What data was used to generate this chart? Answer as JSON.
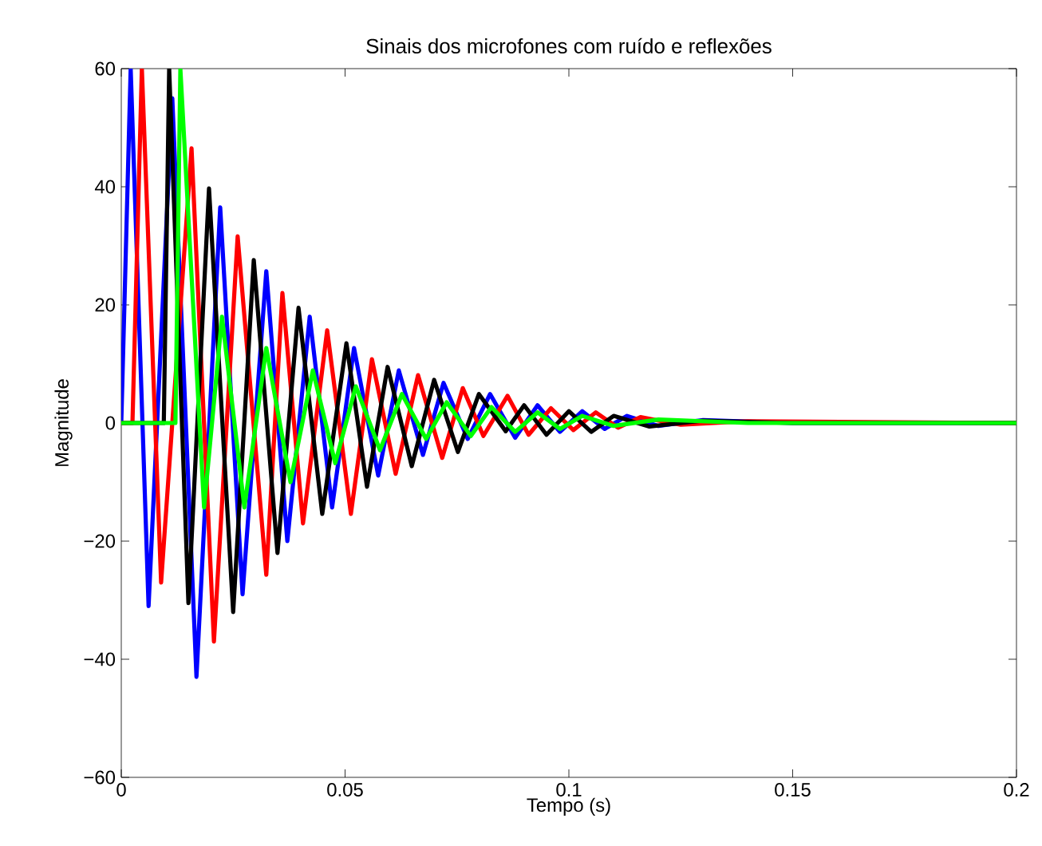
{
  "chart_data": {
    "type": "line",
    "title": "Sinais dos microfones com ruído e reflexões",
    "xlabel": "Tempo (s)",
    "ylabel": "Magnitude",
    "xlim": [
      0,
      0.2
    ],
    "ylim": [
      -60,
      60
    ],
    "xticks": [
      0,
      0.05,
      0.1,
      0.15,
      0.2
    ],
    "yticks": [
      {
        "value": -60,
        "label": "−60"
      },
      {
        "value": -40,
        "label": "−40"
      },
      {
        "value": -20,
        "label": "−20"
      },
      0,
      20,
      40,
      60
    ],
    "grid": false,
    "marker": "none",
    "line_style": "solid",
    "series": [
      {
        "color": "#0000ff",
        "x": [
          0,
          0.0021,
          0.0061,
          0.0114,
          0.0168,
          0.0221,
          0.0271,
          0.0324,
          0.0371,
          0.0421,
          0.0471,
          0.052,
          0.0574,
          0.062,
          0.0674,
          0.072,
          0.0774,
          0.0824,
          0.088,
          0.093,
          0.098,
          0.103,
          0.108,
          0.113,
          0.12,
          0.13,
          0.15,
          0.2
        ],
        "values": [
          0,
          60,
          -31,
          55,
          -43,
          36.5,
          -29,
          25.7,
          -20,
          18,
          -14.3,
          12.7,
          -8.9,
          8.9,
          -5.4,
          6.8,
          -2.7,
          4.9,
          -2.5,
          3,
          -1.5,
          2,
          -1,
          1.2,
          -0.5,
          0.5,
          0,
          0
        ]
      },
      {
        "color": "#ff0000",
        "x": [
          0,
          0.0025,
          0.0046,
          0.0089,
          0.0157,
          0.0207,
          0.026,
          0.0324,
          0.036,
          0.0406,
          0.046,
          0.0513,
          0.056,
          0.0613,
          0.0663,
          0.0717,
          0.0763,
          0.0809,
          0.0863,
          0.091,
          0.096,
          0.101,
          0.106,
          0.111,
          0.116,
          0.125,
          0.14,
          0.2
        ],
        "values": [
          0,
          0,
          60,
          -27,
          46.5,
          -37,
          31.6,
          -25.7,
          22,
          -17,
          15.7,
          -15.4,
          10.8,
          -8.6,
          8.1,
          -5.9,
          5.9,
          -2.2,
          4.6,
          -2,
          2.5,
          -1.2,
          1.8,
          -0.8,
          1,
          -0.3,
          0.3,
          0
        ]
      },
      {
        "color": "#000000",
        "x": [
          0,
          0.0095,
          0.0107,
          0.015,
          0.0196,
          0.025,
          0.0296,
          0.0349,
          0.0396,
          0.0449,
          0.0503,
          0.0549,
          0.0595,
          0.0649,
          0.0699,
          0.0752,
          0.0799,
          0.0859,
          0.09,
          0.095,
          0.1,
          0.105,
          0.11,
          0.118,
          0.13,
          0.15,
          0.2
        ],
        "values": [
          0,
          0,
          60,
          -30.5,
          39.7,
          -32,
          27.6,
          -22,
          19.5,
          -15.4,
          13.5,
          -10.8,
          9.5,
          -7.3,
          7.3,
          -4.9,
          4.9,
          -1.4,
          3,
          -2,
          2,
          -1.5,
          1.2,
          -0.6,
          0.4,
          0,
          0
        ]
      },
      {
        "color": "#00ff00",
        "x": [
          0,
          0.0121,
          0.0132,
          0.0185,
          0.0225,
          0.0275,
          0.0324,
          0.0378,
          0.0428,
          0.0478,
          0.0524,
          0.0578,
          0.0627,
          0.0681,
          0.0727,
          0.0781,
          0.0827,
          0.088,
          0.093,
          0.098,
          0.103,
          0.11,
          0.12,
          0.14,
          0.2
        ],
        "values": [
          0,
          0,
          60,
          -14.3,
          18,
          -14.3,
          12.7,
          -10,
          8.9,
          -6.8,
          6.2,
          -4.6,
          4.9,
          -2.7,
          3.5,
          -2.2,
          2.7,
          -1.5,
          1.8,
          -1,
          1.2,
          -0.5,
          0.6,
          0,
          0
        ]
      }
    ]
  }
}
